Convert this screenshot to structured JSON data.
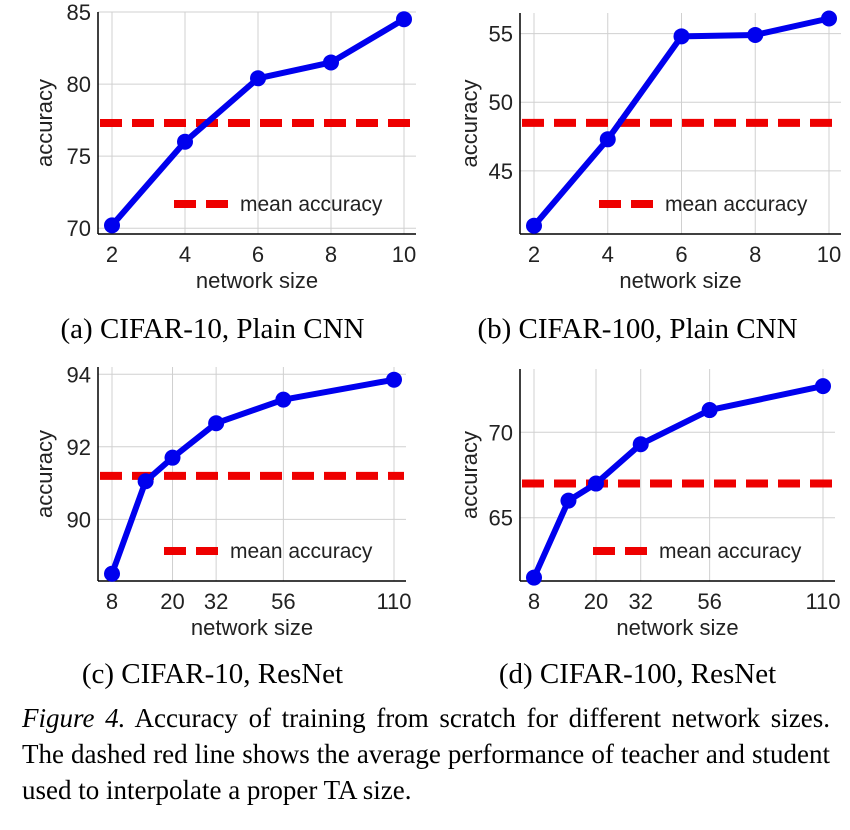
{
  "charts": {
    "colors": {
      "line": "#0000ee",
      "mean": "#ee0000",
      "grid": "#d0d0d0",
      "axis": "#000000"
    },
    "chart_data": [
      {
        "type": "line",
        "subcaption": "(a) CIFAR-10, Plain CNN",
        "xlabel": "network size",
        "ylabel": "accuracy",
        "x": [
          2,
          4,
          6,
          8,
          10
        ],
        "xticks": [
          "2",
          "4",
          "6",
          "8",
          "10"
        ],
        "xscale": "linear",
        "xlim": [
          2,
          10
        ],
        "ylim": [
          69.6,
          85
        ],
        "yticks": [
          70,
          75,
          80,
          85
        ],
        "values": [
          70.2,
          76.0,
          80.4,
          81.5,
          84.5
        ],
        "mean": 77.3,
        "legend": "mean accuracy",
        "legend_loc": "lower-right",
        "grid": true
      },
      {
        "type": "line",
        "subcaption": "(b) CIFAR-100, Plain CNN",
        "xlabel": "network size",
        "ylabel": "accuracy",
        "x": [
          2,
          4,
          6,
          8,
          10
        ],
        "xticks": [
          "2",
          "4",
          "6",
          "8",
          "10"
        ],
        "xscale": "linear",
        "xlim": [
          2,
          10
        ],
        "ylim": [
          40.4,
          56.5
        ],
        "yticks": [
          45,
          50,
          55
        ],
        "values": [
          41.0,
          47.3,
          54.8,
          54.9,
          56.1
        ],
        "mean": 48.5,
        "legend": "mean accuracy",
        "legend_loc": "lower-right",
        "grid": true
      },
      {
        "type": "line",
        "subcaption": "(c) CIFAR-10, ResNet",
        "xlabel": "network size",
        "ylabel": "accuracy",
        "x": [
          8,
          14,
          20,
          32,
          56,
          110
        ],
        "xticks": [
          "8",
          "20",
          "32",
          "56",
          "110"
        ],
        "xtick_values": [
          8,
          20,
          32,
          56,
          110
        ],
        "xscale": "sqrt",
        "xlim": [
          8,
          110
        ],
        "ylim": [
          88.3,
          94.2
        ],
        "yticks": [
          90,
          92,
          94
        ],
        "values": [
          88.5,
          91.05,
          91.7,
          92.65,
          93.3,
          93.85
        ],
        "mean": 91.2,
        "legend": "mean accuracy",
        "legend_loc": "lower-right",
        "grid": true
      },
      {
        "type": "line",
        "subcaption": "(d) CIFAR-100, ResNet",
        "xlabel": "network size",
        "ylabel": "accuracy",
        "x": [
          8,
          14,
          20,
          32,
          56,
          110
        ],
        "xticks": [
          "8",
          "20",
          "32",
          "56",
          "110"
        ],
        "xtick_values": [
          8,
          20,
          32,
          56,
          110
        ],
        "xscale": "sqrt",
        "xlim": [
          8,
          110
        ],
        "ylim": [
          61.3,
          73.7
        ],
        "yticks": [
          65,
          70
        ],
        "values": [
          61.5,
          66.0,
          67.0,
          69.3,
          71.3,
          72.7
        ],
        "mean": 67.0,
        "legend": "mean accuracy",
        "legend_loc": "lower-right",
        "grid": true
      }
    ]
  },
  "caption": {
    "label": "Figure 4.",
    "text": " Accuracy of training from scratch for different network sizes.  The dashed red line shows the average performance of teacher and student used to interpolate a proper TA size."
  }
}
